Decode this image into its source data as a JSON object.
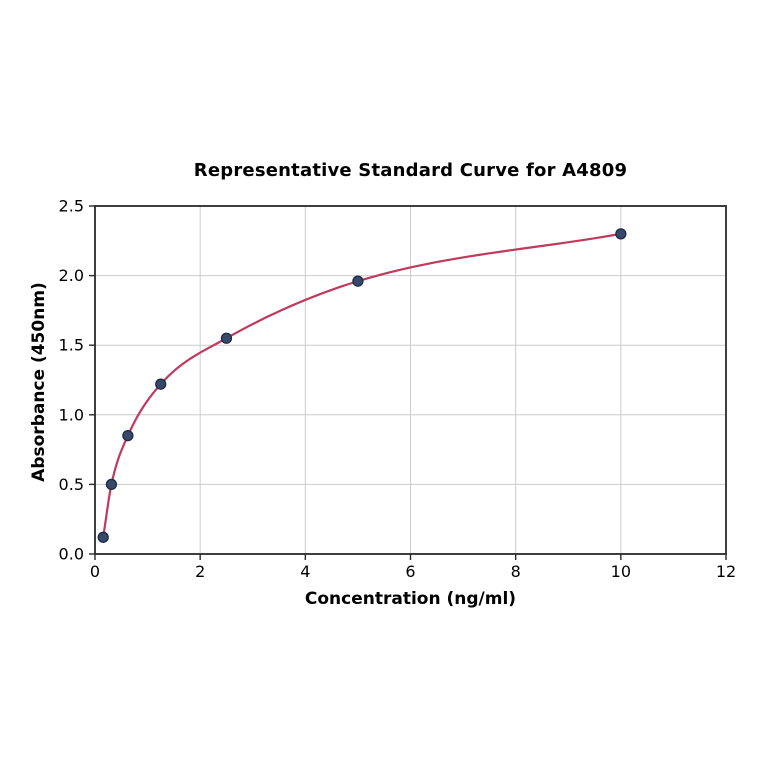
{
  "chart_data": {
    "type": "scatter+line",
    "title": "Representative Standard Curve for A4809",
    "xlabel": "Concentration (ng/ml)",
    "ylabel": "Absorbance (450nm)",
    "xlim": [
      0,
      12
    ],
    "ylim": [
      0,
      2.5
    ],
    "grid": true,
    "legend": "none",
    "points": [
      {
        "x": 0.156,
        "y": 0.12
      },
      {
        "x": 0.3125,
        "y": 0.5
      },
      {
        "x": 0.625,
        "y": 0.85
      },
      {
        "x": 1.25,
        "y": 1.22
      },
      {
        "x": 2.5,
        "y": 1.55
      },
      {
        "x": 5,
        "y": 1.96
      },
      {
        "x": 10,
        "y": 2.3
      }
    ],
    "xticks": [
      {
        "label": "0",
        "value": 0
      },
      {
        "label": "2",
        "value": 2
      },
      {
        "label": "4",
        "value": 4
      },
      {
        "label": "6",
        "value": 6
      },
      {
        "label": "8",
        "value": 8
      },
      {
        "label": "10",
        "value": 10
      },
      {
        "label": "12",
        "value": 12
      }
    ],
    "yticks": [
      {
        "label": "0.0",
        "value": 0.0
      },
      {
        "label": "0.5",
        "value": 0.5
      },
      {
        "label": "1.0",
        "value": 1.0
      },
      {
        "label": "1.5",
        "value": 1.5
      },
      {
        "label": "2.0",
        "value": 2.0
      },
      {
        "label": "2.5",
        "value": 2.5
      }
    ],
    "colors": {
      "curve": "#bf3a5c",
      "marker_fill": "#35496b",
      "marker_edge": "#1f2c46",
      "grid": "#cccccc",
      "spine": "#2a2a2a",
      "tick": "#2a2a2a",
      "text": "#000000",
      "background": "#ffffff"
    }
  }
}
